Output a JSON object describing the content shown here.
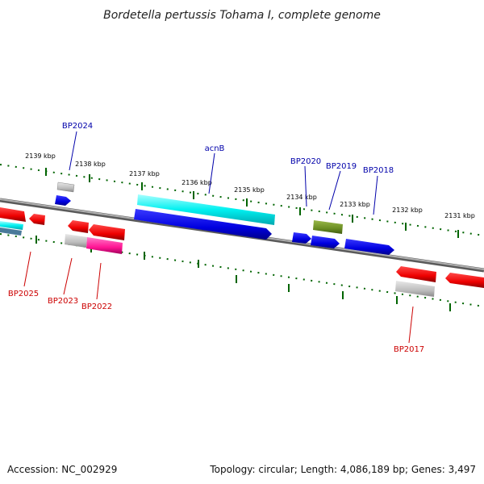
{
  "title": "Bordetella pertussis Tohama I, complete genome",
  "footer": {
    "accession": "Accession: NC_002929",
    "topology": "Topology: circular; Length: 4,086,189 bp; Genes: 3,497"
  },
  "scale_labels": [
    "2139 kbp",
    "2138 kbp",
    "2137 kbp",
    "2136 kbp",
    "2135 kbp",
    "2134 kbp",
    "2133 kbp",
    "2132 kbp",
    "2131 kbp"
  ],
  "colors": {
    "blue_label": "#0000aa",
    "red_label": "#cc0000",
    "tick": "#006400",
    "backbone": "#808080"
  },
  "genes_top": [
    {
      "id": "BP2024",
      "label": "BP2024",
      "color": "#bdbdbd"
    },
    {
      "id": "acnB",
      "label": "acnB",
      "color": "#00e5ee"
    },
    {
      "id": "BP2020",
      "label": "BP2020",
      "color": "#6b8e23"
    },
    {
      "id": "BP2019",
      "label": "BP2019",
      "color": "#0000ee"
    },
    {
      "id": "BP2018",
      "label": "BP2018",
      "color": "#0000ee"
    }
  ],
  "genes_bottom": [
    {
      "id": "BP2025",
      "label": "BP2025",
      "color": "#ff0000"
    },
    {
      "id": "BP2023",
      "label": "BP2023",
      "color": "#bdbdbd"
    },
    {
      "id": "BP2022",
      "label": "BP2022",
      "color": "#ff1493"
    },
    {
      "id": "BP2017",
      "label": "BP2017",
      "color": "#bdbdbd"
    }
  ]
}
